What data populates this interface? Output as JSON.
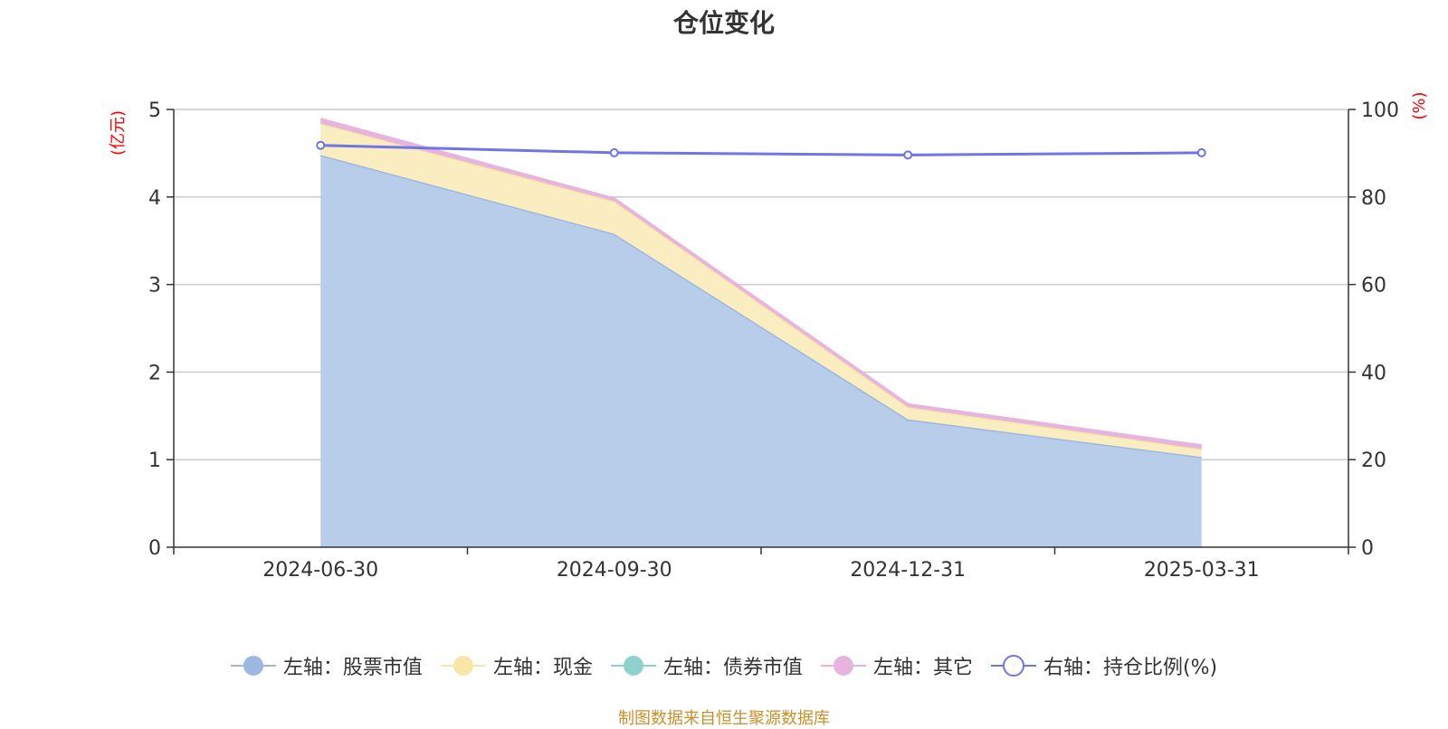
{
  "chart_data": {
    "type": "area",
    "title": "仓位变化",
    "categories": [
      "2024-06-30",
      "2024-09-30",
      "2024-12-31",
      "2025-03-31"
    ],
    "left_axis": {
      "unit": "(亿元)",
      "ylim": [
        0,
        5
      ],
      "ticks": [
        "0",
        "1",
        "2",
        "3",
        "4",
        "5"
      ]
    },
    "right_axis": {
      "unit": "(%)",
      "ylim": [
        0,
        100
      ],
      "ticks": [
        "0",
        "20",
        "40",
        "60",
        "80",
        "100"
      ]
    },
    "stacked_series": [
      {
        "name": "左轴：股票市值",
        "axis": "left",
        "values": [
          4.48,
          3.58,
          1.46,
          1.03
        ],
        "color": "#9db8e0",
        "fill": "#b8cdea"
      },
      {
        "name": "左轴：现金",
        "axis": "left",
        "values": [
          0.36,
          0.37,
          0.14,
          0.09
        ],
        "color": "#f7e6a6",
        "fill": "#faeec0"
      },
      {
        "name": "左轴：债券市值",
        "axis": "left",
        "values": [
          0,
          0,
          0,
          0
        ],
        "color": "#8fd1cf",
        "fill": "#8fd1cf"
      },
      {
        "name": "左轴：其它",
        "axis": "left",
        "values": [
          0.05,
          0.03,
          0.03,
          0.04
        ],
        "color": "#e6b4dc",
        "fill": "#e6b4dc"
      }
    ],
    "line_series": [
      {
        "name": "右轴：持仓比例(%)",
        "axis": "right",
        "values": [
          91.8,
          90.1,
          89.6,
          90.1
        ],
        "color": "#6f74e8"
      }
    ],
    "grid": true,
    "legend_position": "bottom"
  },
  "source_note": "制图数据来自恒生聚源数据库"
}
